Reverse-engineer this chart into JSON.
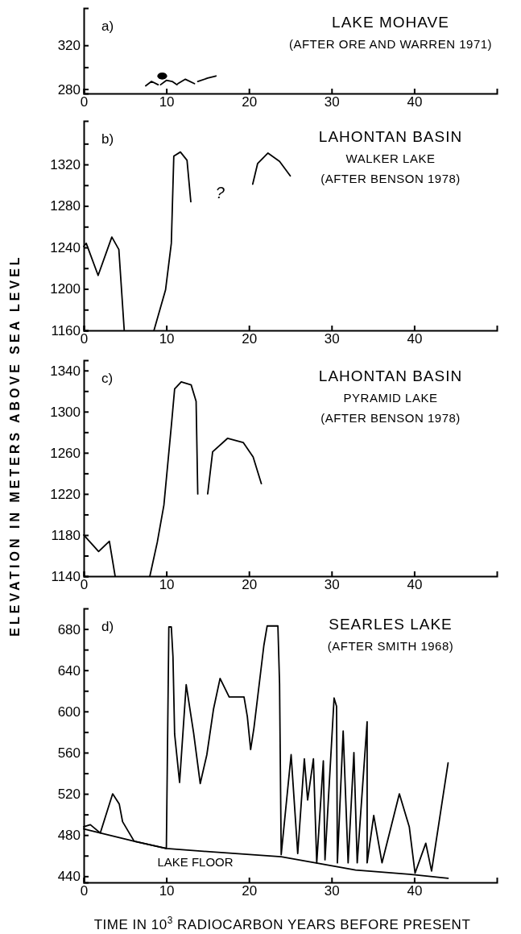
{
  "chart_data": [
    {
      "type": "line",
      "title": "LAKE MOHAVE",
      "subtitle": "(AFTER ORE AND WARREN 1971)",
      "annotations": [
        "a)"
      ],
      "xlim": [
        0,
        50
      ],
      "xticks": [
        0,
        10,
        20,
        30,
        40
      ],
      "ylim": [
        276,
        354
      ],
      "yticks": [
        280,
        {
          "value": 300,
          "label": null
        },
        320
      ],
      "series": [
        {
          "color": "#000000",
          "x": [
            7.5,
            8.2,
            9.0,
            null,
            9.3,
            10,
            10.7,
            11.3,
            null,
            11.4,
            12.3,
            13.4,
            null,
            13.8,
            15.0,
            16.0
          ],
          "values": [
            283,
            287,
            284,
            null,
            284,
            288,
            287,
            284,
            null,
            285,
            289,
            285,
            null,
            287,
            290,
            292
          ]
        },
        {
          "type": "scatter",
          "color": "#000000",
          "marker": "circle",
          "x": [
            9.5
          ],
          "values": [
            292
          ]
        }
      ]
    },
    {
      "type": "line",
      "title": "LAHONTAN BASIN",
      "subtitle": "WALKER LAKE\n(AFTER BENSON 1978)",
      "annotations": [
        "b)",
        "?"
      ],
      "xlim": [
        0,
        50
      ],
      "xticks": [
        0,
        10,
        20,
        30,
        40
      ],
      "ylim": [
        1160,
        1362
      ],
      "yticks": [
        1160,
        {
          "value": 1180,
          "label": null
        },
        1200,
        {
          "value": 1220,
          "label": null
        },
        1240,
        {
          "value": 1260,
          "label": null
        },
        1280,
        {
          "value": 1300,
          "label": null
        },
        1320,
        {
          "value": 1340,
          "label": null
        }
      ],
      "series": [
        {
          "color": "#000000",
          "x": [
            0,
            0.3,
            1.74,
            3.4,
            4.25,
            4.9,
            null,
            8.5,
            9.9,
            10.6,
            10.9,
            11.7,
            12.5,
            12.96,
            null,
            20.45,
            21.05,
            22.3,
            23.7,
            25.0
          ],
          "values": [
            1241,
            1244,
            1213,
            1250,
            1238,
            1160,
            null,
            1160,
            1199,
            1244,
            1328,
            1332,
            1324,
            1284,
            null,
            1301,
            1321,
            1331,
            1323,
            1309
          ]
        }
      ]
    },
    {
      "type": "line",
      "title": "LAHONTAN BASIN",
      "subtitle": "PYRAMID LAKE\n(AFTER BENSON 1978)",
      "ylabel": "ELEVATION IN METERS ABOVE SEA LEVEL",
      "annotations": [
        "c)"
      ],
      "xlim": [
        0,
        50
      ],
      "xticks": [
        0,
        10,
        20,
        30,
        40
      ],
      "ylim": [
        1140,
        1350
      ],
      "yticks": [
        1140,
        {
          "value": 1160,
          "label": null
        },
        1180,
        {
          "value": 1200,
          "label": null
        },
        1220,
        {
          "value": 1240,
          "label": null
        },
        1260,
        {
          "value": 1280,
          "label": null
        },
        1300,
        {
          "value": 1320,
          "label": null
        },
        1340
      ],
      "series": [
        {
          "color": "#000000",
          "x": [
            0,
            1.8,
            3.1,
            3.8,
            null,
            8.0,
            8.9,
            9.7,
            10.6,
            11.0,
            11.8,
            13.0,
            13.6,
            13.8,
            null,
            15.0,
            15.6,
            17.4,
            19.3,
            20.5,
            21.5
          ],
          "values": [
            1180,
            1164,
            1174,
            1140,
            null,
            1140,
            1173,
            1209,
            1286,
            1322,
            1329,
            1326,
            1310,
            1220,
            null,
            1220,
            1261,
            1274,
            1270,
            1256,
            1230
          ]
        }
      ]
    },
    {
      "type": "line",
      "title": "SEARLES LAKE",
      "subtitle": "(AFTER SMITH 1968)",
      "xlabel": "TIME IN 10$^{3}$ RADIOCARBON YEARS BEFORE PRESENT",
      "annotations": [
        "d)",
        "LAKE FLOOR"
      ],
      "xlim": [
        0,
        50
      ],
      "xticks": [
        0,
        10,
        20,
        30,
        40
      ],
      "ylim": [
        434,
        700
      ],
      "yticks": [
        440,
        {
          "value": 460,
          "label": null
        },
        480,
        {
          "value": 500,
          "label": null
        },
        520,
        {
          "value": 540,
          "label": null
        },
        560,
        {
          "value": 580,
          "label": null
        },
        600,
        {
          "value": 620,
          "label": null
        },
        640,
        {
          "value": 660,
          "label": null
        },
        680
      ],
      "series": [
        {
          "color": "#000000",
          "x": [
            0,
            6.1,
            10,
            14.9,
            23.9,
            28.0,
            32.9,
            39.4,
            44.1
          ],
          "values": [
            486,
            474,
            467,
            464,
            459,
            453,
            446,
            442,
            438
          ]
        },
        {
          "color": "#000000",
          "x": [
            0,
            0.8,
            2.0,
            3.5,
            4.3,
            4.7,
            6.1,
            10,
            10.3,
            10.6,
            10.8,
            11.0,
            11.6,
            12.4,
            13.3,
            14.1,
            14.9,
            15.7,
            16.5,
            17.6,
            19.4,
            19.8,
            20.2,
            20.6,
            21.8,
            22.2,
            23.5,
            23.7,
            23.9,
            25.1,
            25.9,
            26.7,
            27.1,
            27.8,
            28.2,
            29.0,
            29.2,
            30.3,
            30.6,
            30.7,
            31.4,
            32.0,
            32.7,
            33.1,
            34.3,
            34.3,
            35.1,
            36.1,
            38.2,
            39.4,
            40.1,
            41.4,
            42.1,
            44.1
          ],
          "values": [
            488,
            490,
            482,
            520,
            510,
            493,
            474,
            467,
            682,
            682,
            653,
            578,
            531,
            626,
            579,
            530,
            558,
            602,
            632,
            614,
            614,
            595,
            563,
            584,
            664,
            683,
            683,
            627,
            461,
            558,
            462,
            554,
            514,
            554,
            453,
            552,
            456,
            613,
            605,
            453,
            581,
            453,
            560,
            453,
            590,
            453,
            499,
            453,
            520,
            488,
            443,
            472,
            445,
            550
          ]
        }
      ]
    }
  ]
}
